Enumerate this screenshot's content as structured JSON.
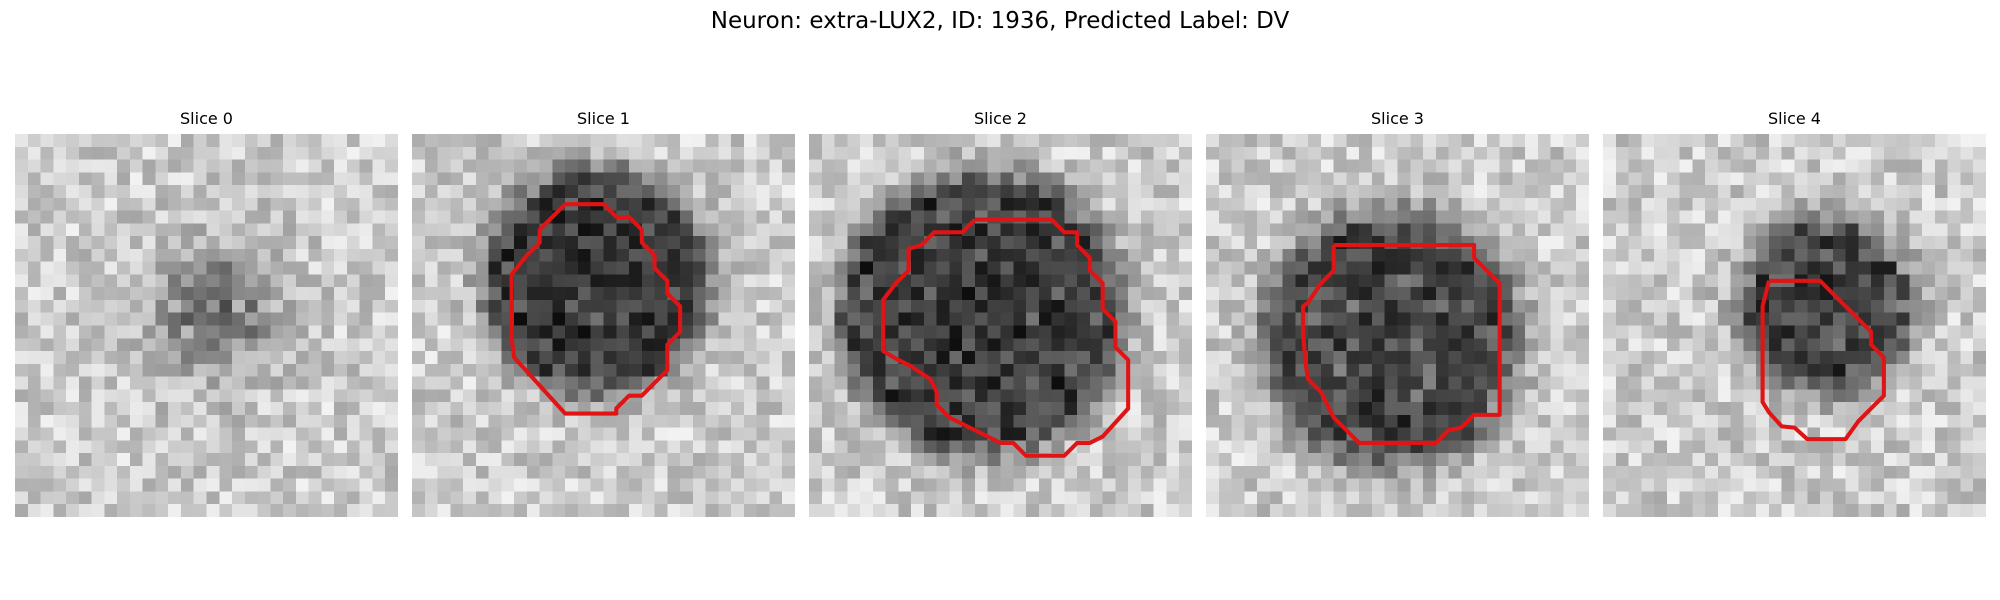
{
  "figure": {
    "title": "Neuron: extra-LUX2, ID: 1936, Predicted Label: DV",
    "contour_color": "#e01414"
  },
  "panels": [
    {
      "label": "Slice 0",
      "blob_center": [
        15.5,
        14.0
      ],
      "blob_radius": 4.0,
      "blob_strength": 0.55,
      "has_contour": false
    },
    {
      "label": "Slice 1",
      "blob_center": [
        14.5,
        11.5
      ],
      "blob_radius": 7.2,
      "blob_strength": 0.92,
      "has_contour": true
    },
    {
      "label": "Slice 2",
      "blob_center": [
        13.5,
        14.0
      ],
      "blob_radius": 9.5,
      "blob_strength": 0.88,
      "has_contour": true
    },
    {
      "label": "Slice 3",
      "blob_center": [
        14.5,
        16.0
      ],
      "blob_radius": 8.5,
      "blob_strength": 0.8,
      "has_contour": true
    },
    {
      "label": "Slice 4",
      "blob_center": [
        17.5,
        13.5
      ],
      "blob_radius": 5.2,
      "blob_strength": 0.85,
      "has_contour": true
    }
  ]
}
